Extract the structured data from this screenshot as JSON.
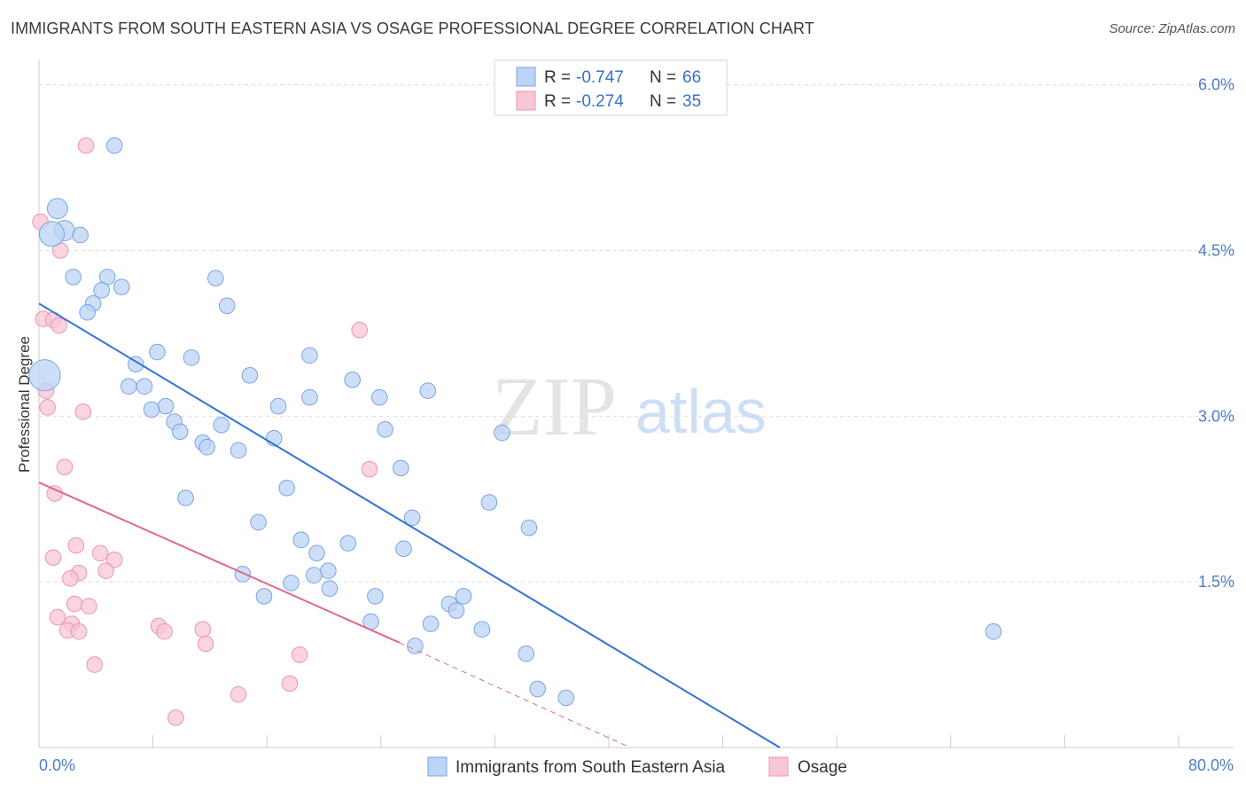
{
  "title": "IMMIGRANTS FROM SOUTH EASTERN ASIA VS OSAGE PROFESSIONAL DEGREE CORRELATION CHART",
  "source": "Source: ZipAtlas.com",
  "watermark": {
    "zip": "ZIP",
    "atlas": "atlas"
  },
  "stats": [
    {
      "r_label": "R = ",
      "r_value": "-0.747",
      "n_label": "N = ",
      "n_value": "66"
    },
    {
      "r_label": "R = ",
      "r_value": "-0.274",
      "n_label": "N = ",
      "n_value": "35"
    }
  ],
  "colors": {
    "blue_fill": "#bcd4f5",
    "blue_stroke": "#7aa4e0",
    "blue_line": "#2f73d6",
    "pink_fill": "#f8c6d6",
    "pink_stroke": "#eb95b2",
    "pink_line": "#e0668f",
    "tick": "#4a7ecb",
    "grid": "#dddddd"
  },
  "chart_data": {
    "type": "scatter",
    "title": "IMMIGRANTS FROM SOUTH EASTERN ASIA VS OSAGE PROFESSIONAL DEGREE CORRELATION CHART",
    "xlabel": "",
    "ylabel": "Professional Degree",
    "xlim": [
      0,
      80
    ],
    "ylim": [
      0,
      6.15
    ],
    "x_tick_labels": [
      "0.0%",
      "80.0%"
    ],
    "y_ticks": [
      1.5,
      3.0,
      4.5,
      6.0
    ],
    "y_tick_labels": [
      "1.5%",
      "3.0%",
      "4.5%",
      "6.0%"
    ],
    "grid": true,
    "legend_position": "bottom-center",
    "series": [
      {
        "name": "Immigrants from South Eastern Asia",
        "color": "#bcd4f5",
        "trend": {
          "x": [
            0,
            52
          ],
          "y": [
            4.02,
            0.0
          ]
        },
        "points": [
          {
            "x": 5.3,
            "y": 5.45,
            "s": 1
          },
          {
            "x": 1.3,
            "y": 4.88,
            "s": 1.3
          },
          {
            "x": 1.8,
            "y": 4.68,
            "s": 1.3
          },
          {
            "x": 0.9,
            "y": 4.65,
            "s": 1.6
          },
          {
            "x": 2.9,
            "y": 4.64,
            "s": 1
          },
          {
            "x": 2.4,
            "y": 4.26,
            "s": 1
          },
          {
            "x": 4.8,
            "y": 4.26,
            "s": 1
          },
          {
            "x": 12.4,
            "y": 4.25,
            "s": 1
          },
          {
            "x": 5.8,
            "y": 4.17,
            "s": 1
          },
          {
            "x": 4.4,
            "y": 4.14,
            "s": 1
          },
          {
            "x": 3.8,
            "y": 4.02,
            "s": 1
          },
          {
            "x": 13.2,
            "y": 4.0,
            "s": 1
          },
          {
            "x": 3.4,
            "y": 3.94,
            "s": 1
          },
          {
            "x": 8.3,
            "y": 3.58,
            "s": 1
          },
          {
            "x": 10.7,
            "y": 3.53,
            "s": 1
          },
          {
            "x": 19.0,
            "y": 3.55,
            "s": 1
          },
          {
            "x": 6.8,
            "y": 3.47,
            "s": 1
          },
          {
            "x": 0.4,
            "y": 3.37,
            "s": 2
          },
          {
            "x": 14.8,
            "y": 3.37,
            "s": 1
          },
          {
            "x": 22.0,
            "y": 3.33,
            "s": 1
          },
          {
            "x": 6.3,
            "y": 3.27,
            "s": 1
          },
          {
            "x": 7.4,
            "y": 3.27,
            "s": 1
          },
          {
            "x": 27.3,
            "y": 3.23,
            "s": 1
          },
          {
            "x": 19.0,
            "y": 3.17,
            "s": 1
          },
          {
            "x": 23.9,
            "y": 3.17,
            "s": 1
          },
          {
            "x": 8.9,
            "y": 3.09,
            "s": 1
          },
          {
            "x": 7.9,
            "y": 3.06,
            "s": 1
          },
          {
            "x": 16.8,
            "y": 3.09,
            "s": 1
          },
          {
            "x": 9.5,
            "y": 2.95,
            "s": 1
          },
          {
            "x": 12.8,
            "y": 2.92,
            "s": 1
          },
          {
            "x": 24.3,
            "y": 2.88,
            "s": 1
          },
          {
            "x": 9.9,
            "y": 2.86,
            "s": 1
          },
          {
            "x": 32.5,
            "y": 2.85,
            "s": 1
          },
          {
            "x": 16.5,
            "y": 2.8,
            "s": 1
          },
          {
            "x": 11.5,
            "y": 2.76,
            "s": 1
          },
          {
            "x": 11.8,
            "y": 2.72,
            "s": 1
          },
          {
            "x": 14.0,
            "y": 2.69,
            "s": 1
          },
          {
            "x": 25.4,
            "y": 2.53,
            "s": 1
          },
          {
            "x": 17.4,
            "y": 2.35,
            "s": 1
          },
          {
            "x": 10.3,
            "y": 2.26,
            "s": 1
          },
          {
            "x": 31.6,
            "y": 2.22,
            "s": 1
          },
          {
            "x": 26.2,
            "y": 2.08,
            "s": 1
          },
          {
            "x": 15.4,
            "y": 2.04,
            "s": 1
          },
          {
            "x": 34.4,
            "y": 1.99,
            "s": 1
          },
          {
            "x": 18.4,
            "y": 1.88,
            "s": 1
          },
          {
            "x": 21.7,
            "y": 1.85,
            "s": 1
          },
          {
            "x": 25.6,
            "y": 1.8,
            "s": 1
          },
          {
            "x": 19.5,
            "y": 1.76,
            "s": 1
          },
          {
            "x": 20.3,
            "y": 1.6,
            "s": 1
          },
          {
            "x": 14.3,
            "y": 1.57,
            "s": 1
          },
          {
            "x": 19.3,
            "y": 1.56,
            "s": 1
          },
          {
            "x": 17.7,
            "y": 1.49,
            "s": 1
          },
          {
            "x": 20.4,
            "y": 1.44,
            "s": 1
          },
          {
            "x": 23.6,
            "y": 1.37,
            "s": 1
          },
          {
            "x": 15.8,
            "y": 1.37,
            "s": 1
          },
          {
            "x": 29.8,
            "y": 1.37,
            "s": 1
          },
          {
            "x": 28.8,
            "y": 1.3,
            "s": 1
          },
          {
            "x": 29.3,
            "y": 1.24,
            "s": 1
          },
          {
            "x": 23.3,
            "y": 1.14,
            "s": 1
          },
          {
            "x": 27.5,
            "y": 1.12,
            "s": 1
          },
          {
            "x": 31.1,
            "y": 1.07,
            "s": 1
          },
          {
            "x": 67.0,
            "y": 1.05,
            "s": 1
          },
          {
            "x": 26.4,
            "y": 0.92,
            "s": 1
          },
          {
            "x": 34.2,
            "y": 0.85,
            "s": 1
          },
          {
            "x": 35.0,
            "y": 0.53,
            "s": 1
          },
          {
            "x": 37.0,
            "y": 0.45,
            "s": 1
          }
        ]
      },
      {
        "name": "Osage",
        "color": "#f8c6d6",
        "trend": {
          "x": [
            0,
            25.3
          ],
          "y": [
            2.4,
            0.95
          ],
          "dashed_to": {
            "x": [
              25.3,
              41.5
            ],
            "y": [
              0.95,
              0.0
            ]
          }
        },
        "points": [
          {
            "x": 3.3,
            "y": 5.45,
            "s": 1
          },
          {
            "x": 0.1,
            "y": 4.76,
            "s": 1
          },
          {
            "x": 1.5,
            "y": 4.5,
            "s": 1
          },
          {
            "x": 0.3,
            "y": 3.88,
            "s": 1
          },
          {
            "x": 1.0,
            "y": 3.87,
            "s": 1
          },
          {
            "x": 1.4,
            "y": 3.82,
            "s": 1
          },
          {
            "x": 22.5,
            "y": 3.78,
            "s": 1
          },
          {
            "x": 0.5,
            "y": 3.23,
            "s": 1
          },
          {
            "x": 0.6,
            "y": 3.08,
            "s": 1
          },
          {
            "x": 3.1,
            "y": 3.04,
            "s": 1
          },
          {
            "x": 1.8,
            "y": 2.54,
            "s": 1
          },
          {
            "x": 23.2,
            "y": 2.52,
            "s": 1
          },
          {
            "x": 1.1,
            "y": 2.3,
            "s": 1
          },
          {
            "x": 2.6,
            "y": 1.83,
            "s": 1
          },
          {
            "x": 4.3,
            "y": 1.76,
            "s": 1
          },
          {
            "x": 1.0,
            "y": 1.72,
            "s": 1
          },
          {
            "x": 5.3,
            "y": 1.7,
            "s": 1
          },
          {
            "x": 4.7,
            "y": 1.6,
            "s": 1
          },
          {
            "x": 2.8,
            "y": 1.58,
            "s": 1
          },
          {
            "x": 2.2,
            "y": 1.53,
            "s": 1
          },
          {
            "x": 2.5,
            "y": 1.3,
            "s": 1
          },
          {
            "x": 3.5,
            "y": 1.28,
            "s": 1
          },
          {
            "x": 1.3,
            "y": 1.18,
            "s": 1
          },
          {
            "x": 2.3,
            "y": 1.12,
            "s": 1
          },
          {
            "x": 8.4,
            "y": 1.1,
            "s": 1
          },
          {
            "x": 11.5,
            "y": 1.07,
            "s": 1
          },
          {
            "x": 2.0,
            "y": 1.06,
            "s": 1
          },
          {
            "x": 2.8,
            "y": 1.05,
            "s": 1
          },
          {
            "x": 8.8,
            "y": 1.05,
            "s": 1
          },
          {
            "x": 11.7,
            "y": 0.94,
            "s": 1
          },
          {
            "x": 18.3,
            "y": 0.84,
            "s": 1
          },
          {
            "x": 3.9,
            "y": 0.75,
            "s": 1
          },
          {
            "x": 17.6,
            "y": 0.58,
            "s": 1
          },
          {
            "x": 14.0,
            "y": 0.48,
            "s": 1
          },
          {
            "x": 9.6,
            "y": 0.27,
            "s": 1
          }
        ]
      }
    ]
  }
}
